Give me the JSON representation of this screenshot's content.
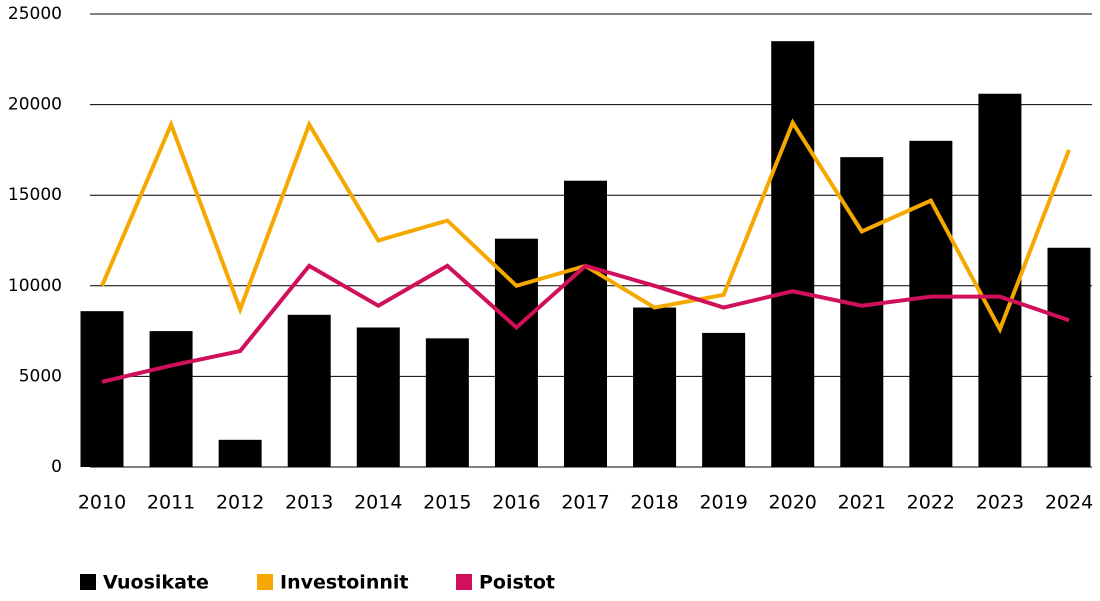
{
  "chart_data": {
    "type": "bar",
    "categories": [
      "2010",
      "2011",
      "2012",
      "2013",
      "2014",
      "2015",
      "2016",
      "2017",
      "2018",
      "2019",
      "2020",
      "2021",
      "2022",
      "2023",
      "2024"
    ],
    "series": [
      {
        "name": "Vuosikate",
        "type": "bar",
        "color": "#000000",
        "values": [
          8600,
          7500,
          1500,
          8400,
          7700,
          7100,
          12600,
          15800,
          8800,
          7400,
          23500,
          17100,
          18000,
          20600,
          12100
        ]
      },
      {
        "name": "Investoinnit",
        "type": "line",
        "color": "#f5a800",
        "values": [
          10000,
          18900,
          8700,
          18900,
          12500,
          13600,
          10000,
          11100,
          8800,
          9500,
          19000,
          13000,
          14700,
          7600,
          17500
        ]
      },
      {
        "name": "Poistot",
        "type": "line",
        "color": "#d0105a",
        "values": [
          4700,
          5600,
          6400,
          11100,
          8900,
          11100,
          7700,
          11100,
          10000,
          8800,
          9700,
          8900,
          9400,
          9400,
          8100
        ]
      }
    ],
    "ylim": [
      0,
      25000
    ],
    "yticks": [
      0,
      5000,
      10000,
      15000,
      20000,
      25000
    ],
    "grid": true,
    "legend": "bottom"
  }
}
